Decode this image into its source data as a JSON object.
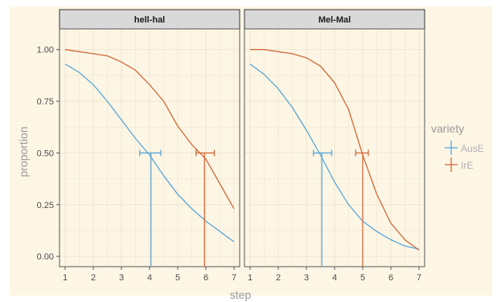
{
  "chart_data": {
    "type": "line",
    "xlabel": "step",
    "ylabel": "proportion",
    "xlim": [
      0.8,
      7.2
    ],
    "ylim": [
      -0.05,
      1.1
    ],
    "x_ticks": [
      1,
      2,
      3,
      4,
      5,
      6,
      7
    ],
    "y_ticks": [
      0.0,
      0.25,
      0.5,
      0.75,
      1.0
    ],
    "y_tick_labels": [
      "0.00",
      "0.25",
      "0.50",
      "0.75",
      "1.00"
    ],
    "grid": true,
    "legend": {
      "title": "variety",
      "position": "right",
      "entries": [
        {
          "name": "AusE",
          "color": "#5aa6d8"
        },
        {
          "name": "IrE",
          "color": "#d2693a"
        }
      ]
    },
    "panels": [
      {
        "label": "hell-hal",
        "series": [
          {
            "name": "AusE",
            "color": "#5aa6d8",
            "x": [
              1,
              1.5,
              2,
              2.5,
              3,
              3.5,
              4,
              4.5,
              5,
              5.5,
              6,
              6.5,
              7
            ],
            "y": [
              0.93,
              0.89,
              0.83,
              0.75,
              0.66,
              0.57,
              0.49,
              0.39,
              0.3,
              0.23,
              0.17,
              0.12,
              0.07
            ]
          },
          {
            "name": "IrE",
            "color": "#d2693a",
            "x": [
              1,
              1.5,
              2,
              2.5,
              3,
              3.5,
              4,
              4.5,
              5,
              5.5,
              6,
              6.5,
              7
            ],
            "y": [
              1.0,
              0.99,
              0.98,
              0.97,
              0.94,
              0.9,
              0.83,
              0.75,
              0.63,
              0.54,
              0.47,
              0.35,
              0.23
            ]
          }
        ],
        "thresholds": [
          {
            "name": "AusE",
            "color": "#5aa6d8",
            "x": 4.05,
            "y": 0.5,
            "xmin": 3.65,
            "xmax": 4.4
          },
          {
            "name": "IrE",
            "color": "#d2693a",
            "x": 5.95,
            "y": 0.5,
            "xmin": 5.65,
            "xmax": 6.3
          }
        ]
      },
      {
        "label": "Mel-Mal",
        "series": [
          {
            "name": "AusE",
            "color": "#5aa6d8",
            "x": [
              1,
              1.5,
              2,
              2.5,
              3,
              3.5,
              4,
              4.5,
              5,
              5.5,
              6,
              6.5,
              7
            ],
            "y": [
              0.93,
              0.88,
              0.81,
              0.72,
              0.61,
              0.49,
              0.36,
              0.25,
              0.17,
              0.12,
              0.08,
              0.05,
              0.035
            ]
          },
          {
            "name": "IrE",
            "color": "#d2693a",
            "x": [
              1,
              1.5,
              2,
              2.5,
              3,
              3.5,
              4,
              4.5,
              5,
              5.5,
              6,
              6.5,
              7
            ],
            "y": [
              1.0,
              1.0,
              0.99,
              0.98,
              0.96,
              0.92,
              0.84,
              0.71,
              0.49,
              0.3,
              0.16,
              0.08,
              0.03
            ]
          }
        ],
        "thresholds": [
          {
            "name": "AusE",
            "color": "#5aa6d8",
            "x": 3.55,
            "y": 0.5,
            "xmin": 3.25,
            "xmax": 3.9
          },
          {
            "name": "IrE",
            "color": "#d2693a",
            "x": 5.0,
            "y": 0.5,
            "xmin": 4.75,
            "xmax": 5.2
          }
        ]
      }
    ]
  }
}
